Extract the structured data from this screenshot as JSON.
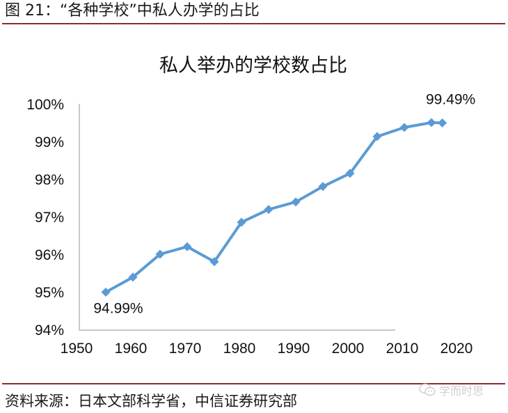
{
  "figure": {
    "caption": "图 21：“各种学校”中私人办学的占比",
    "source": "资料来源：日本文部科学省，中信证券研究部",
    "watermark": "学而时思",
    "rule_color": "#8b2b2e"
  },
  "chart_data": {
    "type": "line",
    "title": "私人举办的学校数占比",
    "xlabel": "",
    "ylabel": "",
    "x": [
      1955,
      1960,
      1965,
      1970,
      1975,
      1980,
      1985,
      1990,
      1995,
      2000,
      2005,
      2010,
      2015,
      2017
    ],
    "series": [
      {
        "name": "私人举办的学校数占比",
        "color": "#5b9bd5",
        "marker": "diamond",
        "values": [
          94.99,
          95.39,
          96.0,
          96.2,
          95.8,
          96.85,
          97.19,
          97.39,
          97.8,
          98.15,
          99.13,
          99.37,
          99.5,
          99.49
        ]
      }
    ],
    "annotations": [
      {
        "x": 1955,
        "y": 94.99,
        "text": "94.99%"
      },
      {
        "x": 2017,
        "y": 99.49,
        "text": "99.49%"
      }
    ],
    "xlim": [
      1950,
      2020
    ],
    "ylim": [
      94,
      100
    ],
    "x_ticks": [
      "1950",
      "1960",
      "1970",
      "1980",
      "1990",
      "2000",
      "2010",
      "2020"
    ],
    "y_ticks": [
      "94%",
      "95%",
      "96%",
      "97%",
      "98%",
      "99%",
      "100%"
    ],
    "grid": false,
    "legend": "none"
  }
}
